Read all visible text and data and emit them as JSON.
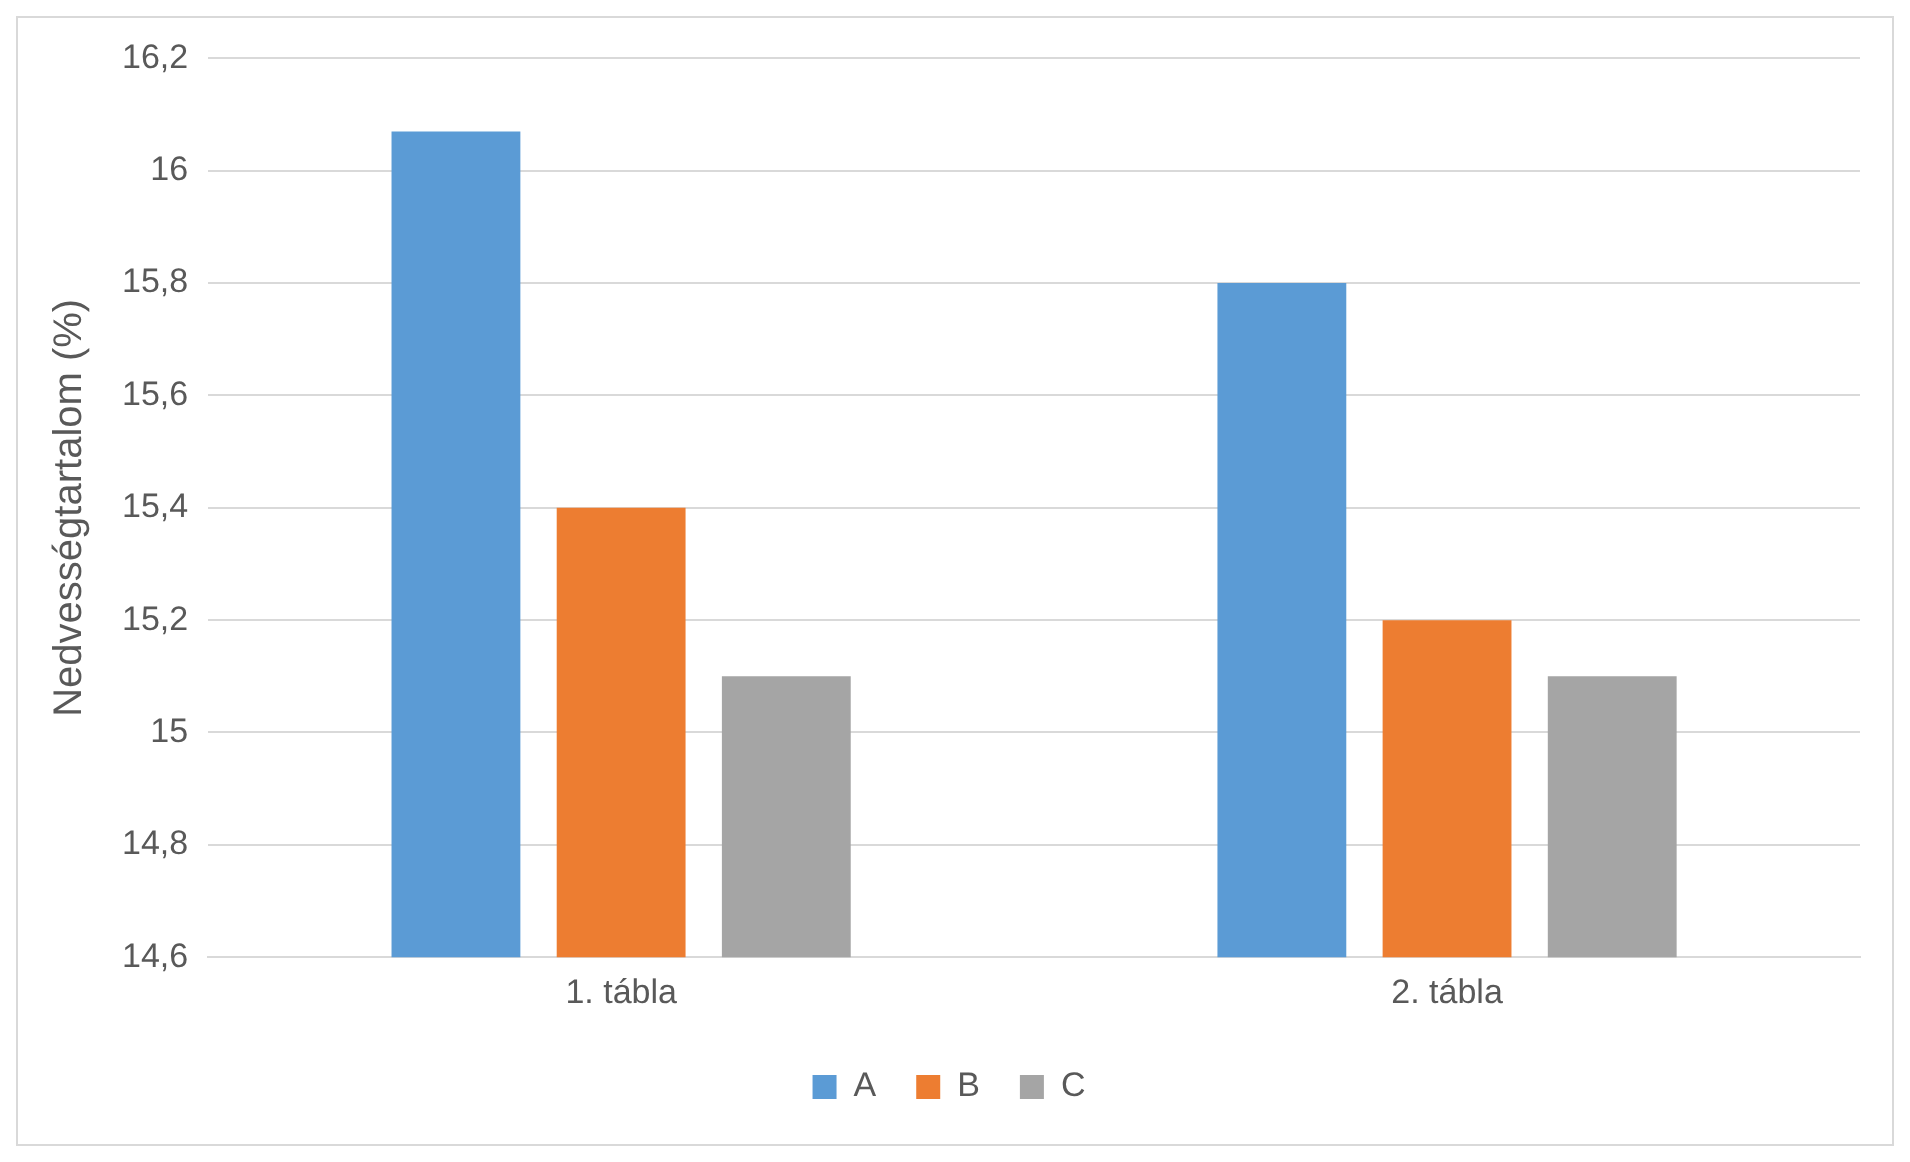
{
  "chart_data": {
    "type": "bar",
    "ylabel": "Nedvességtartalom (%)",
    "categories": [
      "1. tábla",
      "2. tábla"
    ],
    "series": [
      {
        "name": "A",
        "color": "#5b9bd5",
        "values": [
          16.07,
          15.8
        ]
      },
      {
        "name": "B",
        "color": "#ed7d31",
        "values": [
          15.4,
          15.2
        ]
      },
      {
        "name": "C",
        "color": "#a5a5a5",
        "values": [
          15.1,
          15.1
        ]
      }
    ],
    "ylim": [
      14.6,
      16.2
    ],
    "yticks": [
      {
        "value": 14.6,
        "label": "14,6"
      },
      {
        "value": 14.8,
        "label": "14,8"
      },
      {
        "value": 15,
        "label": "15"
      },
      {
        "value": 15.2,
        "label": "15,2"
      },
      {
        "value": 15.4,
        "label": "15,4"
      },
      {
        "value": 15.6,
        "label": "15,6"
      },
      {
        "value": 15.8,
        "label": "15,8"
      },
      {
        "value": 16,
        "label": "16"
      },
      {
        "value": 16.2,
        "label": "16,2"
      }
    ],
    "grid": "y",
    "legend": "bottom"
  }
}
